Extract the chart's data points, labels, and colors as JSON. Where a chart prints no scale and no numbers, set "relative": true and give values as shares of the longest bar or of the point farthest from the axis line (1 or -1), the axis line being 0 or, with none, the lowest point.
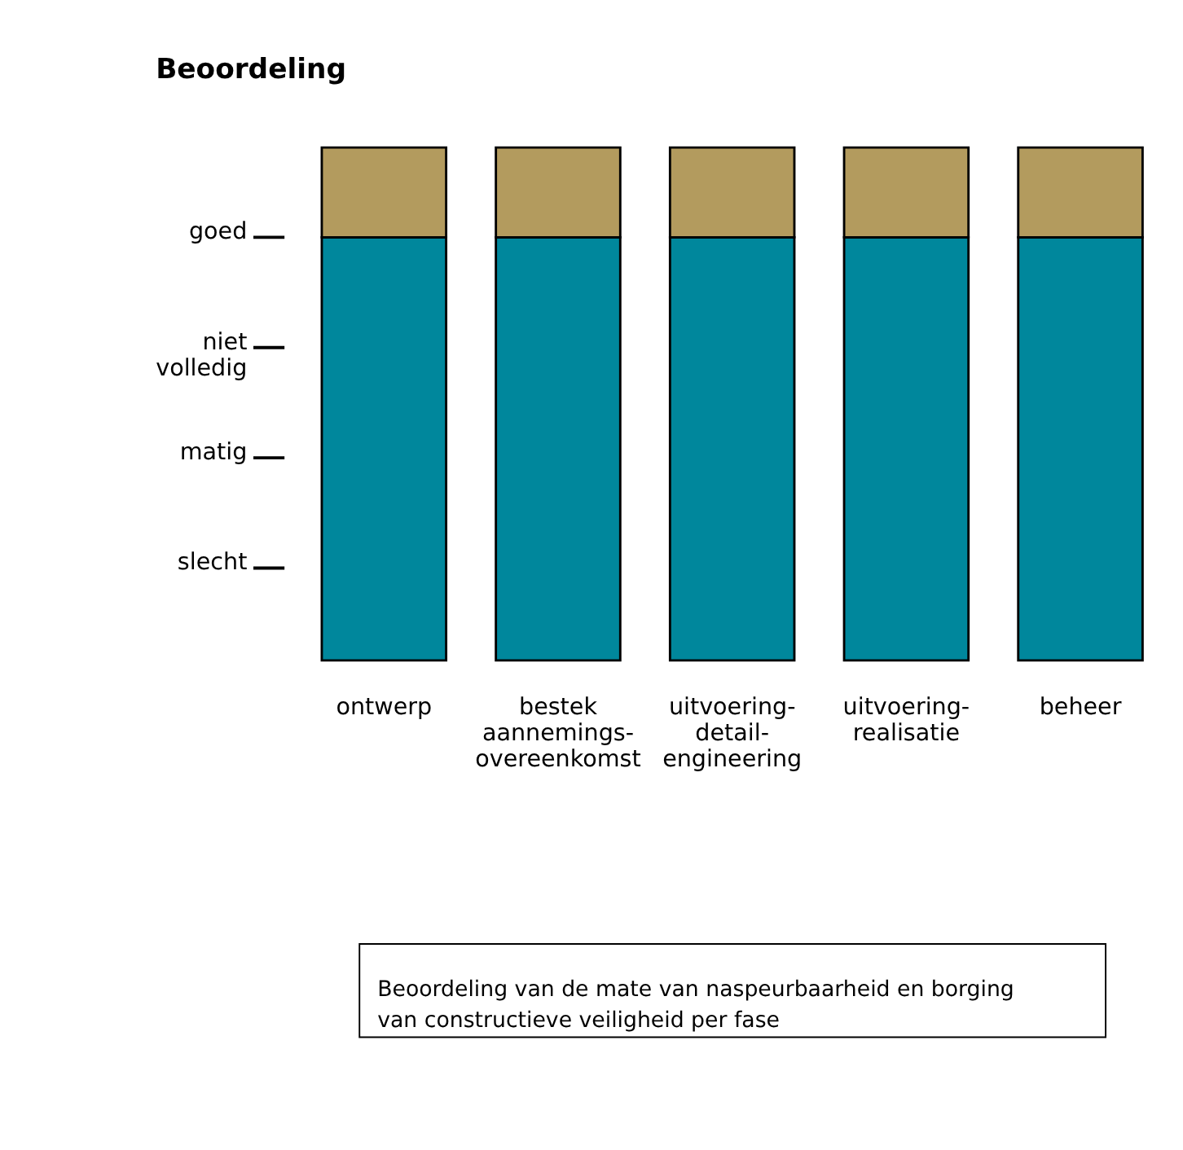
{
  "chart_data": {
    "type": "bar",
    "title": "Beoordeling",
    "stacked": true,
    "relative": true,
    "categories": [
      "ontwerp",
      "bestek\naannemings-\novereenkomst",
      "uitvoering-\ndetail-\nengineering",
      "uitvoering-\nrealisatie",
      "beheer"
    ],
    "series": [
      {
        "color": "#00879c",
        "values": [
          0.825,
          0.825,
          0.825,
          0.825,
          0.825
        ]
      },
      {
        "color": "#b39b5e",
        "values": [
          0.175,
          0.175,
          0.175,
          0.175,
          0.175
        ]
      }
    ],
    "legend": false,
    "annotations": [
      "slecht",
      "matig",
      "niet\nvolledig",
      "goed",
      "Beoordeling van de mate van naspeurbaarheid en borging\nvan constructieve veiligheid per fase"
    ]
  }
}
